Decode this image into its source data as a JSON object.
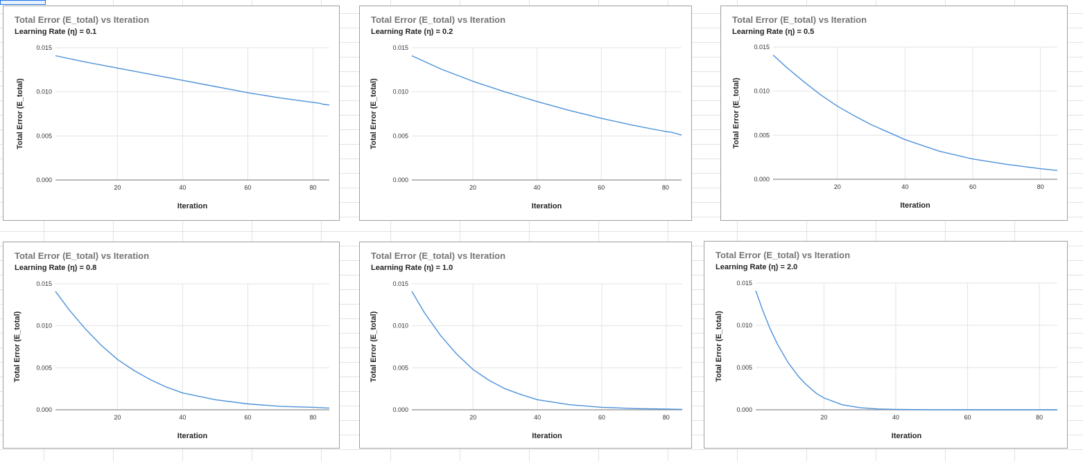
{
  "accent_color": "#4a90d9",
  "chart_data": [
    {
      "type": "line",
      "title": "Total Error (E_total) vs Iteration",
      "subtitle": "Learning Rate (η) = 0.1",
      "xlabel": "Iteration",
      "ylabel": "Total Error (E_total)",
      "xlim": [
        1,
        85
      ],
      "ylim": [
        0,
        0.015
      ],
      "xticks": [
        20,
        40,
        60,
        80
      ],
      "yticks": [
        0,
        0.005,
        0.01,
        0.015
      ],
      "ytick_labels": [
        "0.000",
        "0.005",
        "0.010",
        "0.015"
      ],
      "grid": true,
      "series": [
        {
          "name": "E_total",
          "x": [
            1,
            10,
            20,
            30,
            40,
            50,
            60,
            70,
            80,
            82,
            83,
            85
          ],
          "y": [
            0.0141,
            0.0134,
            0.0127,
            0.012,
            0.0113,
            0.0106,
            0.0099,
            0.0093,
            0.0088,
            0.0087,
            0.0086,
            0.0085
          ]
        }
      ]
    },
    {
      "type": "line",
      "title": "Total Error (E_total) vs Iteration",
      "subtitle": "Learning Rate (η) = 0.2",
      "xlabel": "Iteration",
      "ylabel": "Total Error (E_total)",
      "xlim": [
        1,
        85
      ],
      "ylim": [
        0,
        0.015
      ],
      "xticks": [
        20,
        40,
        60,
        80
      ],
      "yticks": [
        0,
        0.005,
        0.01,
        0.015
      ],
      "ytick_labels": [
        "0.000",
        "0.005",
        "0.010",
        "0.015"
      ],
      "grid": true,
      "series": [
        {
          "name": "E_total",
          "x": [
            1,
            10,
            20,
            30,
            40,
            50,
            60,
            70,
            80,
            82,
            83,
            85
          ],
          "y": [
            0.0141,
            0.0126,
            0.0112,
            0.01,
            0.0089,
            0.0079,
            0.007,
            0.0062,
            0.0055,
            0.0054,
            0.0053,
            0.0051
          ]
        }
      ]
    },
    {
      "type": "line",
      "title": "Total Error (E_total) vs Iteration",
      "subtitle": "Learning Rate (η) = 0.5",
      "xlabel": "Iteration",
      "ylabel": "Total Error (E_total)",
      "xlim": [
        1,
        85
      ],
      "ylim": [
        0,
        0.015
      ],
      "xticks": [
        20,
        40,
        60,
        80
      ],
      "yticks": [
        0,
        0.005,
        0.01,
        0.015
      ],
      "ytick_labels": [
        "0.000",
        "0.005",
        "0.010",
        "0.015"
      ],
      "grid": true,
      "series": [
        {
          "name": "E_total",
          "x": [
            1,
            5,
            10,
            15,
            20,
            25,
            30,
            40,
            50,
            60,
            70,
            80,
            85
          ],
          "y": [
            0.0141,
            0.0127,
            0.0111,
            0.0096,
            0.0083,
            0.0072,
            0.0062,
            0.0045,
            0.0032,
            0.0023,
            0.0017,
            0.0012,
            0.001
          ]
        }
      ]
    },
    {
      "type": "line",
      "title": "Total Error (E_total) vs Iteration",
      "subtitle": "Learning Rate (η) = 0.8",
      "xlabel": "Iteration",
      "ylabel": "Total Error (E_total)",
      "xlim": [
        1,
        85
      ],
      "ylim": [
        0,
        0.015
      ],
      "xticks": [
        20,
        40,
        60,
        80
      ],
      "yticks": [
        0,
        0.005,
        0.01,
        0.015
      ],
      "ytick_labels": [
        "0.000",
        "0.005",
        "0.010",
        "0.015"
      ],
      "grid": true,
      "series": [
        {
          "name": "E_total",
          "x": [
            1,
            5,
            10,
            15,
            20,
            25,
            30,
            35,
            40,
            50,
            60,
            70,
            80,
            85
          ],
          "y": [
            0.0141,
            0.012,
            0.0097,
            0.0077,
            0.006,
            0.0047,
            0.0036,
            0.0027,
            0.002,
            0.0012,
            0.0007,
            0.0004,
            0.0003,
            0.0002
          ]
        }
      ]
    },
    {
      "type": "line",
      "title": "Total Error (E_total) vs Iteration",
      "subtitle": "Learning Rate (η) = 1.0",
      "xlabel": "Iteration",
      "ylabel": "Total Error (E_total)",
      "xlim": [
        1,
        85
      ],
      "ylim": [
        0,
        0.015
      ],
      "xticks": [
        20,
        40,
        60,
        80
      ],
      "yticks": [
        0,
        0.005,
        0.01,
        0.015
      ],
      "ytick_labels": [
        "0.000",
        "0.005",
        "0.010",
        "0.015"
      ],
      "grid": true,
      "series": [
        {
          "name": "E_total",
          "x": [
            1,
            5,
            10,
            15,
            20,
            25,
            30,
            35,
            40,
            50,
            60,
            70,
            80,
            85
          ],
          "y": [
            0.0141,
            0.0115,
            0.0088,
            0.0066,
            0.0048,
            0.0035,
            0.0025,
            0.0018,
            0.0012,
            0.0006,
            0.0003,
            0.00015,
            8e-05,
            5e-05
          ]
        }
      ]
    },
    {
      "type": "line",
      "title": "Total Error (E_total) vs Iteration",
      "subtitle": "Learning Rate (η) = 2.0",
      "xlabel": "Iteration",
      "ylabel": "Total Error (E_total)",
      "xlim": [
        1,
        85
      ],
      "ylim": [
        0,
        0.015
      ],
      "xticks": [
        20,
        40,
        60,
        80
      ],
      "yticks": [
        0,
        0.005,
        0.01,
        0.015
      ],
      "ytick_labels": [
        "0.000",
        "0.005",
        "0.010",
        "0.015"
      ],
      "grid": true,
      "series": [
        {
          "name": "E_total",
          "x": [
            1,
            3,
            5,
            7,
            10,
            13,
            15,
            18,
            20,
            25,
            30,
            35,
            40,
            50,
            60,
            70,
            85
          ],
          "y": [
            0.0141,
            0.0117,
            0.0096,
            0.0078,
            0.0056,
            0.0039,
            0.003,
            0.0019,
            0.0014,
            0.0006,
            0.00025,
            0.0001,
            4e-05,
            1e-05,
            0,
            0,
            0
          ]
        }
      ]
    }
  ]
}
